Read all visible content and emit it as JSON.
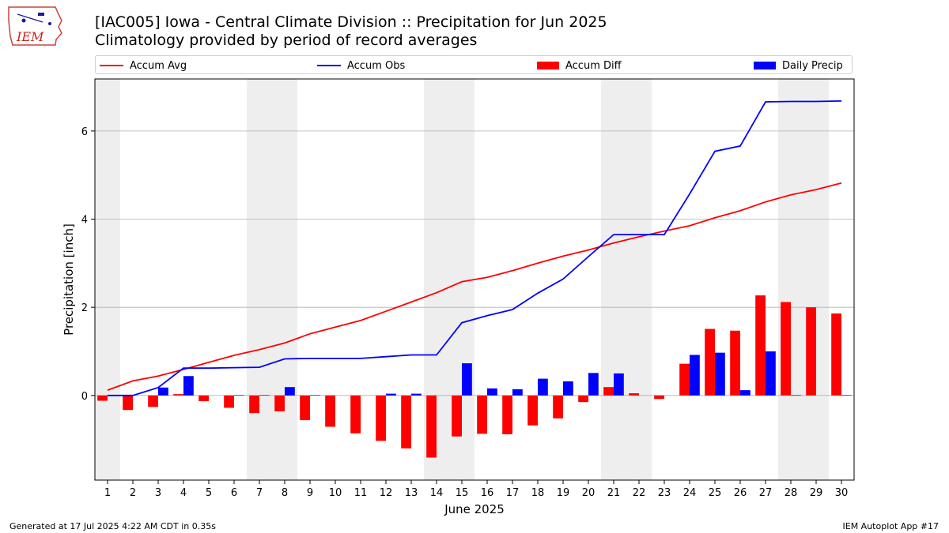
{
  "header": {
    "title_line1": "[IAC005] Iowa - Central Climate Division :: Precipitation for Jun 2025",
    "title_line2": "Climatology provided by period of record averages",
    "logo_text": "IEM"
  },
  "footer": {
    "left": "Generated at 17 Jul 2025 4:22 AM CDT in 0.35s",
    "right": "IEM Autoplot App #17"
  },
  "chart_data": {
    "type": "bar",
    "xlabel": "June 2025",
    "ylabel": "Precipitation [inch]",
    "x": [
      1,
      2,
      3,
      4,
      5,
      6,
      7,
      8,
      9,
      10,
      11,
      12,
      13,
      14,
      15,
      16,
      17,
      18,
      19,
      20,
      21,
      22,
      23,
      24,
      25,
      26,
      27,
      28,
      29,
      30
    ],
    "ylim": [
      -1.92,
      7.18
    ],
    "xlim": [
      0.5,
      30.5
    ],
    "yticks": [
      0,
      2,
      4,
      6
    ],
    "grid": "horizontal",
    "legend_position": "top",
    "weekend_shading": [
      [
        0.5,
        1.5
      ],
      [
        6.5,
        8.5
      ],
      [
        13.5,
        15.5
      ],
      [
        20.5,
        22.5
      ],
      [
        27.5,
        29.5
      ]
    ],
    "colors": {
      "avg": "#ff0000",
      "obs": "#0000ff",
      "diff": "#ff0000",
      "daily": "#0000ff",
      "shade": "#eeeeee",
      "grid": "#b0b0b0"
    },
    "series": [
      {
        "name": "Accum Avg",
        "kind": "line",
        "values": [
          0.12,
          0.33,
          0.44,
          0.59,
          0.75,
          0.91,
          1.04,
          1.19,
          1.4,
          1.55,
          1.7,
          1.91,
          2.12,
          2.33,
          2.58,
          2.68,
          2.83,
          3.0,
          3.16,
          3.3,
          3.46,
          3.6,
          3.73,
          3.85,
          4.03,
          4.19,
          4.39,
          4.55,
          4.67,
          4.82
        ]
      },
      {
        "name": "Accum Obs",
        "kind": "line",
        "values": [
          0.0,
          0.0,
          0.18,
          0.62,
          0.62,
          0.63,
          0.64,
          0.83,
          0.84,
          0.84,
          0.84,
          0.88,
          0.92,
          0.92,
          1.65,
          1.81,
          1.95,
          2.32,
          2.64,
          3.15,
          3.65,
          3.65,
          3.65,
          4.57,
          5.54,
          5.66,
          6.66,
          6.67,
          6.67,
          6.68
        ]
      },
      {
        "name": "Accum Diff",
        "kind": "bar",
        "values": [
          -0.12,
          -0.33,
          -0.26,
          0.03,
          -0.13,
          -0.28,
          -0.4,
          -0.36,
          -0.56,
          -0.71,
          -0.86,
          -1.03,
          -1.2,
          -1.41,
          -0.93,
          -0.87,
          -0.88,
          -0.68,
          -0.52,
          -0.15,
          0.19,
          0.05,
          -0.08,
          0.72,
          1.51,
          1.47,
          2.27,
          2.12,
          2.0,
          1.86
        ]
      },
      {
        "name": "Daily Precip",
        "kind": "bar",
        "values": [
          0.0,
          0.0,
          0.18,
          0.44,
          0.0,
          0.01,
          0.01,
          0.19,
          0.01,
          0.0,
          0.0,
          0.04,
          0.04,
          0.0,
          0.73,
          0.16,
          0.14,
          0.38,
          0.32,
          0.51,
          0.5,
          0.0,
          0.0,
          0.92,
          0.97,
          0.12,
          1.0,
          0.01,
          0.0,
          0.01
        ]
      }
    ]
  }
}
